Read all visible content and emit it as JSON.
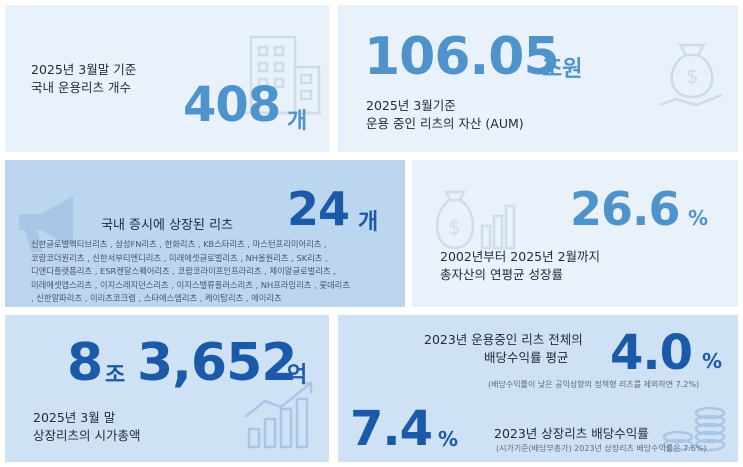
{
  "panel1": {
    "line1": "2025년 3월말 기준",
    "line2": "국내 운용리츠 개수",
    "value": "408",
    "unit": "개"
  },
  "panel2": {
    "value": "106.05",
    "unit": "조원",
    "line1": "2025년 3월기준",
    "line2": "운용 중인 리츠의 자산 (AUM)"
  },
  "panel3": {
    "title": "국내 증시에 상장된 리츠",
    "value": "24",
    "unit": "개",
    "names_1": "신한글로벌액티브리츠 , 삼성FN리츠 , 한화리츠 , KB스타리츠 , 마스턴프리미어리츠 ,",
    "names_2": "코람코더원리츠 , 신한서부티엔디리츠 , 미래에셋글로벌리츠 , NH올원리츠 , SK리츠 ,",
    "names_3": "디앤디플랫폼리츠 , ESR켄달스퀘어리츠 , 코람코라이프인프라리츠 , 제이알글로벌리츠 ,",
    "names_4": "미래에셋맵스리츠 , 이지스레지던스리츠 , 이지스밸류플러스리츠 , NH프라임리츠 , 롯데리츠",
    "names_5": ", 신한알파리츠 , 이리츠코크렙 , 스타에스엠리츠 , 케이탑리츠 , 에이리츠"
  },
  "panel4": {
    "value": "26.6",
    "unit": "%",
    "line1": "2002년부터 2025년 2월까지",
    "line2": "총자산의 연평균 성장률"
  },
  "panel5": {
    "value_a": "8",
    "unit_a": "조",
    "value_b": "3,652",
    "unit_b": "억",
    "line1": "2025년 3월 말",
    "line2": "상장리츠의 시가총액"
  },
  "panel6": {
    "line1": "2023년 운용중인 리츠 전체의",
    "line2": "배당수익률 평균",
    "value": "4.0",
    "unit": "%",
    "note": "(배당수익률이 낮은 공익성향의 정책형 리츠를 제외하면 7.2%)",
    "value2": "7.4",
    "unit2": "%",
    "line3": "2023년 상장리츠 배당수익률",
    "note2": "(시가기준(배당부총가) 2023년 상장리츠 배당수익률은 7.6%)"
  },
  "icons": [
    "building-icon",
    "money-hand-icon",
    "megaphone-icon",
    "money-bag-chart-icon",
    "growth-chart-icon",
    "coins-icon"
  ]
}
